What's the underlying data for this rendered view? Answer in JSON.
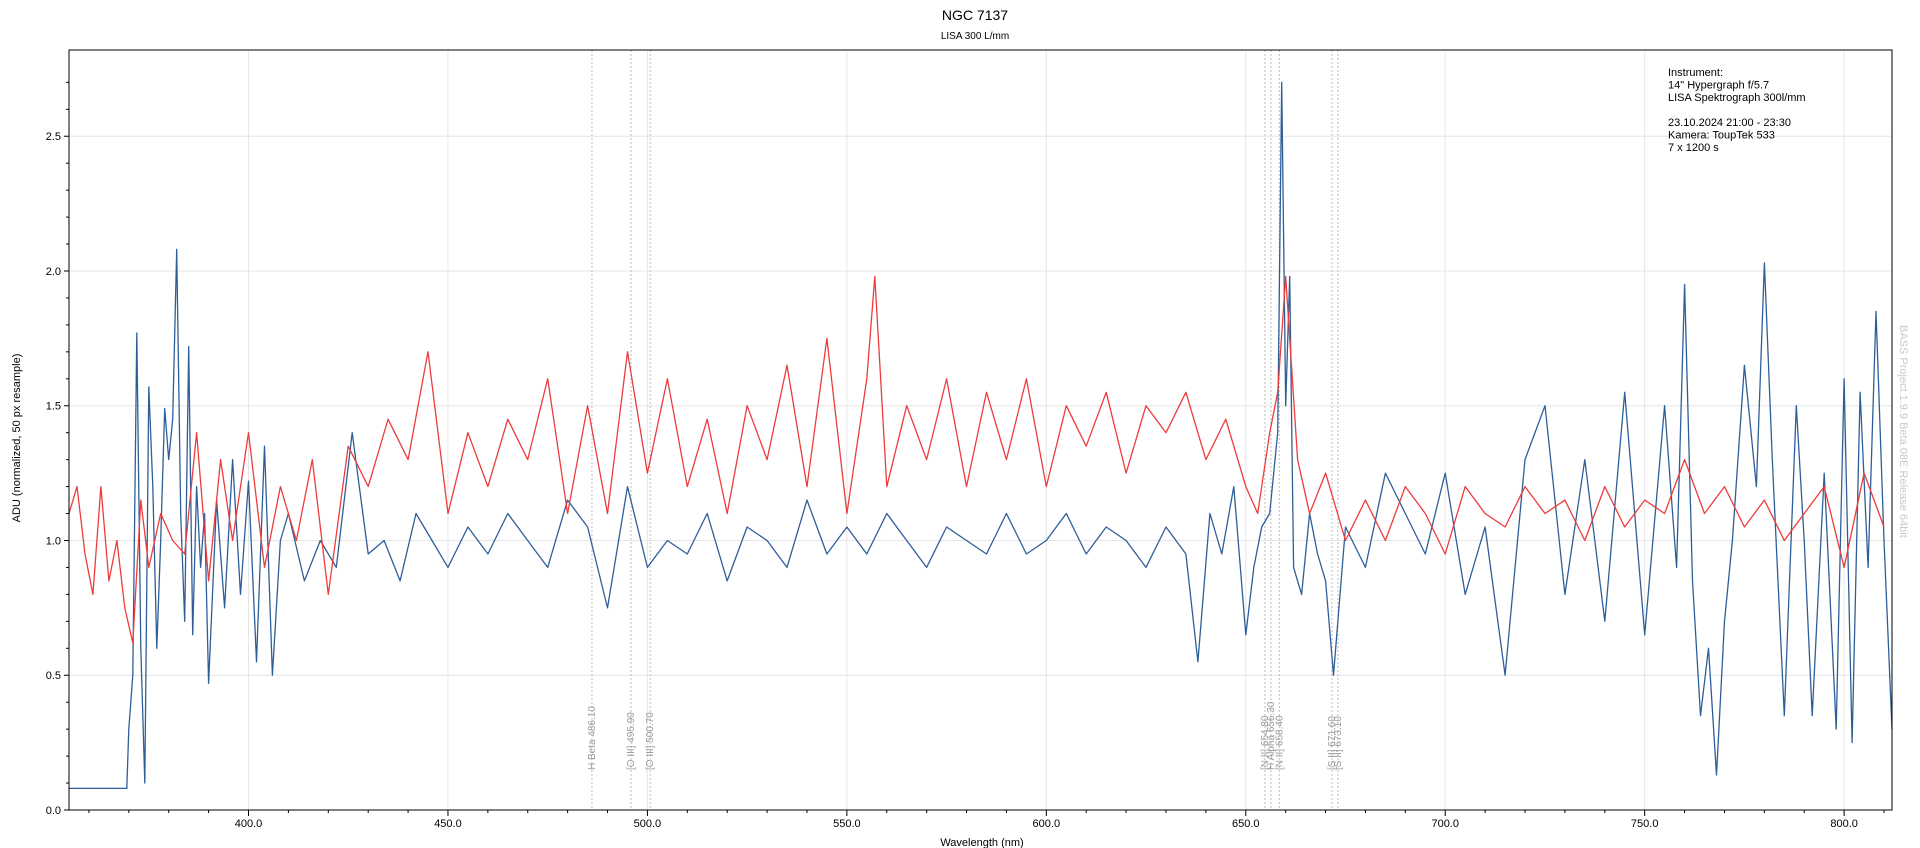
{
  "chart_data": {
    "type": "line",
    "title": "NGC 7137",
    "subtitle": "LISA 300 L/mm",
    "xlabel": "Wavelength (nm)",
    "ylabel": "ADU (normalized, 50 px resample)",
    "xlim": [
      355,
      812
    ],
    "ylim": [
      0.0,
      2.82
    ],
    "xticks": [
      400.0,
      450.0,
      500.0,
      550.0,
      600.0,
      650.0,
      700.0,
      750.0,
      800.0
    ],
    "xtick_labels": [
      "400.0",
      "450.0",
      "500.0",
      "550.0",
      "600.0",
      "650.0",
      "700.0",
      "750.0",
      "800.0"
    ],
    "yticks": [
      0.0,
      0.5,
      1.0,
      1.5,
      2.0,
      2.5
    ],
    "ytick_labels": [
      "0.0",
      "0.5",
      "1.0",
      "1.5",
      "2.0",
      "2.5"
    ],
    "grid": true,
    "info_box": {
      "position": "top-right",
      "lines": [
        "Instrument:",
        "14\" Hypergraph f/5.7",
        "LISA Spektrograph 300l/mm",
        "",
        "23.10.2024  21:00 - 23:30",
        "Kamera: ToupTek 533",
        "7 x 1200 s"
      ]
    },
    "watermark": "BASS Project 1.9.9 Beta 08E Release 64bit",
    "line_markers": [
      {
        "wavelength": 486.1,
        "label": "H Beta 486.10"
      },
      {
        "wavelength": 495.9,
        "label": "[O III] 495.90"
      },
      {
        "wavelength": 500.7,
        "label": "[O III] 500.70"
      },
      {
        "wavelength": 654.8,
        "label": "[N II] 654.80"
      },
      {
        "wavelength": 656.3,
        "label": "H Alpha 656.30"
      },
      {
        "wavelength": 658.4,
        "label": "[N II] 658.40"
      },
      {
        "wavelength": 671.6,
        "label": "[S II] 671.60"
      },
      {
        "wavelength": 673.1,
        "label": "[S II] 673.10"
      }
    ],
    "series": [
      {
        "color": "#2e5e98",
        "x": [
          355,
          369.5,
          370,
          371,
          372,
          373,
          374,
          375,
          376,
          377,
          378,
          379,
          380,
          381,
          382,
          383,
          384,
          385,
          386,
          387,
          388,
          389,
          390,
          392,
          394,
          396,
          398,
          400,
          402,
          404,
          406,
          408,
          410,
          414,
          418,
          422,
          426,
          430,
          434,
          438,
          442,
          446,
          450,
          455,
          460,
          465,
          470,
          475,
          480,
          485,
          490,
          495,
          500,
          505,
          510,
          515,
          520,
          525,
          530,
          535,
          540,
          545,
          550,
          555,
          560,
          565,
          570,
          575,
          580,
          585,
          590,
          595,
          600,
          605,
          610,
          615,
          620,
          625,
          630,
          635,
          638,
          641,
          644,
          647,
          650,
          652,
          654,
          656,
          658,
          659,
          660,
          661,
          662,
          664,
          666,
          668,
          670,
          672,
          675,
          680,
          685,
          690,
          695,
          700,
          705,
          710,
          715,
          720,
          725,
          730,
          735,
          740,
          745,
          750,
          755,
          758,
          760,
          762,
          764,
          766,
          768,
          770,
          772,
          775,
          778,
          780,
          782,
          785,
          788,
          790,
          792,
          795,
          798,
          800,
          802,
          804,
          806,
          808,
          810,
          812
        ],
        "y": [
          0.08,
          0.08,
          0.3,
          0.5,
          1.77,
          0.6,
          0.1,
          1.57,
          1.2,
          0.6,
          1.0,
          1.49,
          1.3,
          1.45,
          2.08,
          1.1,
          0.7,
          1.72,
          0.65,
          1.2,
          0.9,
          1.1,
          0.47,
          1.15,
          0.75,
          1.3,
          0.8,
          1.22,
          0.55,
          1.35,
          0.5,
          1.0,
          1.1,
          0.85,
          1.0,
          0.9,
          1.4,
          0.95,
          1.0,
          0.85,
          1.1,
          1.0,
          0.9,
          1.05,
          0.95,
          1.1,
          1.0,
          0.9,
          1.15,
          1.05,
          0.75,
          1.2,
          0.9,
          1.0,
          0.95,
          1.1,
          0.85,
          1.05,
          1.0,
          0.9,
          1.15,
          0.95,
          1.05,
          0.95,
          1.1,
          1.0,
          0.9,
          1.05,
          1.0,
          0.95,
          1.1,
          0.95,
          1.0,
          1.1,
          0.95,
          1.05,
          1.0,
          0.9,
          1.05,
          0.95,
          0.55,
          1.1,
          0.95,
          1.2,
          0.65,
          0.9,
          1.05,
          1.1,
          1.4,
          2.7,
          1.5,
          1.98,
          0.9,
          0.8,
          1.1,
          0.95,
          0.85,
          0.5,
          1.05,
          0.9,
          1.25,
          1.1,
          0.95,
          1.25,
          0.8,
          1.05,
          0.5,
          1.3,
          1.5,
          0.8,
          1.3,
          0.7,
          1.55,
          0.65,
          1.5,
          0.9,
          1.95,
          0.85,
          0.35,
          0.6,
          0.13,
          0.7,
          1.0,
          1.65,
          1.2,
          2.03,
          1.3,
          0.35,
          1.5,
          1.0,
          0.35,
          1.25,
          0.3,
          1.6,
          0.25,
          1.55,
          0.9,
          1.85,
          1.0,
          0.3
        ]
      },
      {
        "color": "#ee3b3b",
        "x": [
          355,
          357,
          359,
          361,
          363,
          365,
          367,
          369,
          371,
          373,
          375,
          378,
          381,
          384,
          387,
          390,
          393,
          396,
          400,
          404,
          408,
          412,
          416,
          420,
          425,
          430,
          435,
          440,
          445,
          450,
          455,
          460,
          465,
          470,
          475,
          480,
          485,
          490,
          495,
          500,
          505,
          510,
          515,
          520,
          525,
          530,
          535,
          540,
          545,
          550,
          555,
          557,
          560,
          565,
          570,
          575,
          580,
          585,
          590,
          595,
          600,
          605,
          610,
          615,
          620,
          625,
          630,
          635,
          640,
          645,
          650,
          653,
          656,
          658,
          660,
          663,
          666,
          670,
          675,
          680,
          685,
          690,
          695,
          700,
          705,
          710,
          715,
          720,
          725,
          730,
          735,
          740,
          745,
          750,
          755,
          760,
          765,
          770,
          775,
          780,
          785,
          790,
          795,
          800,
          805,
          810
        ],
        "y": [
          1.1,
          1.2,
          0.95,
          0.8,
          1.2,
          0.85,
          1.0,
          0.75,
          0.62,
          1.15,
          0.9,
          1.1,
          1.0,
          0.95,
          1.4,
          0.85,
          1.3,
          1.0,
          1.4,
          0.9,
          1.2,
          1.0,
          1.3,
          0.8,
          1.35,
          1.2,
          1.45,
          1.3,
          1.7,
          1.1,
          1.4,
          1.2,
          1.45,
          1.3,
          1.6,
          1.1,
          1.5,
          1.1,
          1.7,
          1.25,
          1.6,
          1.2,
          1.45,
          1.1,
          1.5,
          1.3,
          1.65,
          1.2,
          1.75,
          1.1,
          1.6,
          1.98,
          1.2,
          1.5,
          1.3,
          1.6,
          1.2,
          1.55,
          1.3,
          1.6,
          1.2,
          1.5,
          1.35,
          1.55,
          1.25,
          1.5,
          1.4,
          1.55,
          1.3,
          1.45,
          1.2,
          1.1,
          1.4,
          1.55,
          1.98,
          1.3,
          1.1,
          1.25,
          1.0,
          1.15,
          1.0,
          1.2,
          1.1,
          0.95,
          1.2,
          1.1,
          1.05,
          1.2,
          1.1,
          1.15,
          1.0,
          1.2,
          1.05,
          1.15,
          1.1,
          1.3,
          1.1,
          1.2,
          1.05,
          1.15,
          1.0,
          1.1,
          1.2,
          0.9,
          1.25,
          1.05
        ]
      }
    ]
  }
}
